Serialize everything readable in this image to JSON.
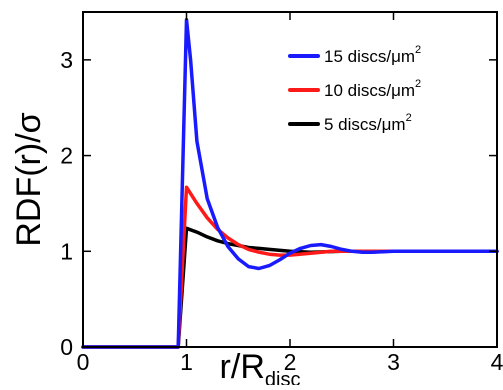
{
  "chart_data": {
    "type": "line",
    "title": "",
    "xlabel_main": "r/R",
    "xlabel_sub": "disc",
    "ylabel": "RDF(r)/σ",
    "xlim": [
      0,
      4
    ],
    "ylim": [
      0,
      3.5
    ],
    "xticks": [
      0,
      1,
      2,
      3,
      4
    ],
    "yticks": [
      0,
      1,
      2,
      3
    ],
    "xtick_labels": [
      "0",
      "1",
      "2",
      "3",
      "4"
    ],
    "ytick_labels": [
      "0",
      "1",
      "2",
      "3"
    ],
    "grid": false,
    "legend_position": "top-right",
    "legend_sup": "2",
    "series": [
      {
        "name": "15 discs/μm",
        "color": "#1a1aff",
        "x": [
          0,
          0.92,
          1.0,
          1.04,
          1.1,
          1.2,
          1.3,
          1.4,
          1.5,
          1.6,
          1.7,
          1.8,
          1.9,
          2.0,
          2.1,
          2.2,
          2.3,
          2.4,
          2.5,
          2.6,
          2.7,
          2.8,
          3.0,
          4.0
        ],
        "y": [
          0,
          0,
          3.42,
          3.0,
          2.15,
          1.55,
          1.25,
          1.05,
          0.92,
          0.84,
          0.82,
          0.85,
          0.91,
          0.98,
          1.03,
          1.06,
          1.07,
          1.05,
          1.02,
          1.0,
          0.99,
          0.99,
          1.0,
          1.0
        ]
      },
      {
        "name": "10 discs/μm",
        "color": "#ff1a1a",
        "x": [
          0,
          0.92,
          1.0,
          1.1,
          1.2,
          1.3,
          1.4,
          1.5,
          1.6,
          1.7,
          1.8,
          1.9,
          2.0,
          2.2,
          2.4,
          2.6,
          2.8,
          3.0,
          4.0
        ],
        "y": [
          0,
          0,
          1.67,
          1.5,
          1.35,
          1.23,
          1.14,
          1.07,
          1.02,
          0.99,
          0.97,
          0.96,
          0.96,
          0.98,
          1.0,
          1.0,
          1.0,
          1.0,
          1.0
        ]
      },
      {
        "name": "5 discs/μm",
        "color": "#000000",
        "x": [
          0,
          0.92,
          1.0,
          1.1,
          1.2,
          1.3,
          1.4,
          1.5,
          1.6,
          1.7,
          1.8,
          2.0,
          2.2,
          2.5,
          3.0,
          4.0
        ],
        "y": [
          0,
          0,
          1.24,
          1.2,
          1.15,
          1.11,
          1.08,
          1.06,
          1.04,
          1.03,
          1.02,
          1.0,
          0.99,
          1.0,
          1.0,
          1.0
        ]
      }
    ]
  }
}
